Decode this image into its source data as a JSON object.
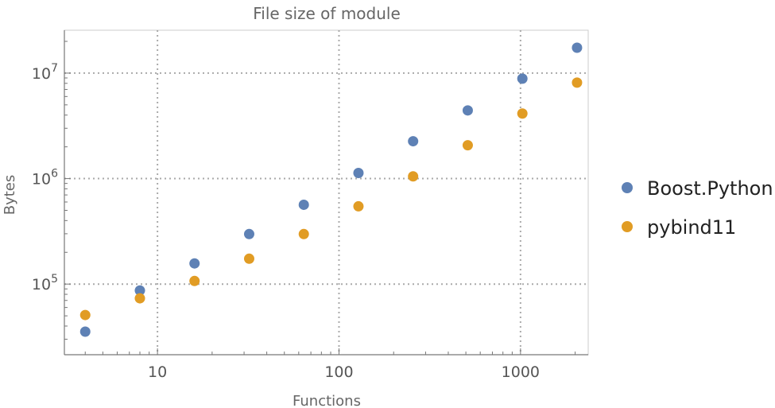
{
  "chart_data": {
    "type": "scatter",
    "title": "File size of module",
    "xlabel": "Functions",
    "ylabel": "Bytes",
    "xscale": "log",
    "yscale": "log",
    "xlim": [
      3.07,
      2360
    ],
    "ylim": [
      21400,
      25500000
    ],
    "grid": true,
    "legend_placement": "right",
    "x_ticks": [
      {
        "value": 10,
        "label": "10"
      },
      {
        "value": 100,
        "label": "100"
      },
      {
        "value": 1000,
        "label": "1000"
      }
    ],
    "y_ticks": [
      {
        "value": 100000,
        "base": "10",
        "exp": "5"
      },
      {
        "value": 1000000,
        "base": "10",
        "exp": "6"
      },
      {
        "value": 10000000,
        "base": "10",
        "exp": "7"
      }
    ],
    "x": [
      4,
      8,
      16,
      32,
      64,
      128,
      256,
      512,
      1024,
      2048
    ],
    "series": [
      {
        "name": "Boost.Python",
        "color": "#5e81b5",
        "values": [
          35400,
          87000,
          157000,
          298000,
          565000,
          1130000,
          2260000,
          4430000,
          8860000,
          17400000
        ]
      },
      {
        "name": "pybind11",
        "color": "#e19c24",
        "values": [
          50900,
          73300,
          107000,
          174000,
          298000,
          546000,
          1050000,
          2070000,
          4140000,
          8130000
        ]
      }
    ]
  }
}
